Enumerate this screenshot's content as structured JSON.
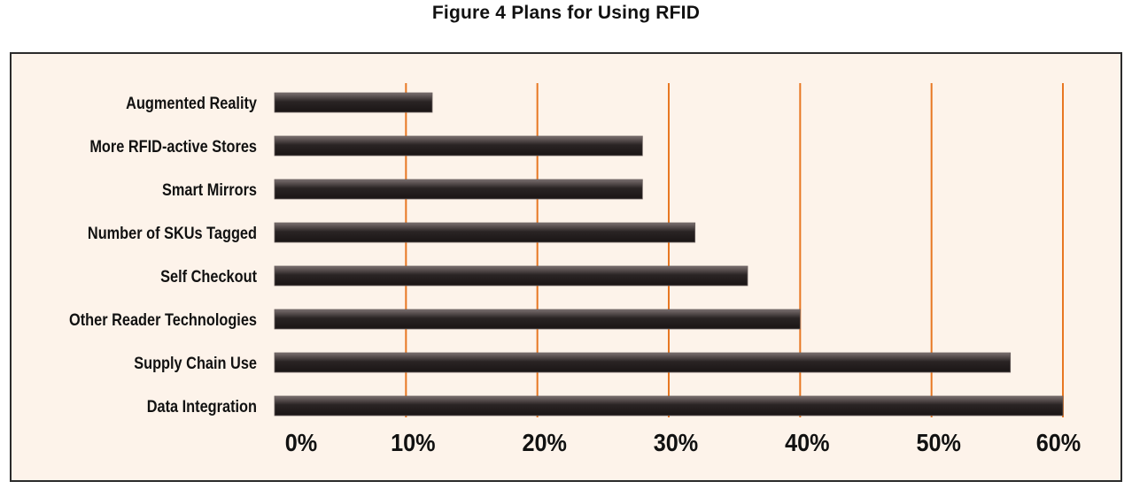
{
  "chart_data": {
    "type": "bar",
    "orientation": "horizontal",
    "title": "Figure 4 Plans for Using RFID",
    "xlabel": "",
    "ylabel": "",
    "categories": [
      "Augmented Reality",
      "More RFID-active Stores",
      "Smart Mirrors",
      "Number of SKUs Tagged",
      "Self Checkout",
      "Other Reader Technologies",
      "Supply Chain Use",
      "Data Integration"
    ],
    "values": [
      12,
      28,
      28,
      32,
      36,
      40,
      56,
      60
    ],
    "xlim": [
      0,
      60
    ],
    "xticks": [
      "0%",
      "10%",
      "20%",
      "30%",
      "40%",
      "50%",
      "60%"
    ],
    "grid": "vertical",
    "colors": {
      "bar": "#2a2424",
      "bar_highlight": "#7a6f6f",
      "gridline": "#e87722",
      "panel_background": "#fdf3ea",
      "panel_border": "#2b2b2b"
    }
  }
}
